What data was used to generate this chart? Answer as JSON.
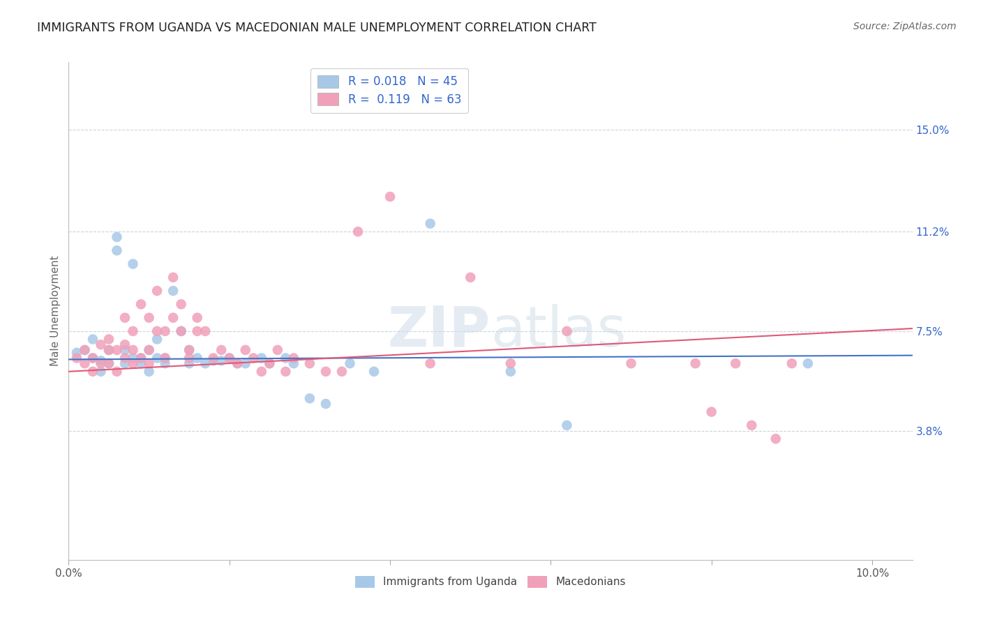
{
  "title": "IMMIGRANTS FROM UGANDA VS MACEDONIAN MALE UNEMPLOYMENT CORRELATION CHART",
  "source": "Source: ZipAtlas.com",
  "ylabel": "Male Unemployment",
  "xlim": [
    0.0,
    0.105
  ],
  "ylim": [
    -0.01,
    0.175
  ],
  "x_ticks": [
    0.0,
    0.02,
    0.04,
    0.06,
    0.08,
    0.1
  ],
  "x_tick_labels": [
    "0.0%",
    "",
    "",
    "",
    "",
    "10.0%"
  ],
  "y_tick_labels_right": [
    "3.8%",
    "7.5%",
    "11.2%",
    "15.0%"
  ],
  "y_ticks_right": [
    0.038,
    0.075,
    0.112,
    0.15
  ],
  "blue_color": "#a8c8e8",
  "pink_color": "#f0a0b8",
  "blue_line_color": "#4472C4",
  "pink_line_color": "#E05878",
  "background_color": "#ffffff",
  "grid_color": "#c8d4de",
  "blue_scatter_x": [
    0.001,
    0.002,
    0.003,
    0.003,
    0.004,
    0.004,
    0.005,
    0.005,
    0.006,
    0.006,
    0.007,
    0.007,
    0.008,
    0.008,
    0.009,
    0.009,
    0.01,
    0.01,
    0.011,
    0.011,
    0.012,
    0.012,
    0.013,
    0.014,
    0.015,
    0.015,
    0.016,
    0.017,
    0.018,
    0.019,
    0.02,
    0.021,
    0.022,
    0.024,
    0.025,
    0.027,
    0.028,
    0.03,
    0.032,
    0.035,
    0.038,
    0.045,
    0.055,
    0.062,
    0.092
  ],
  "blue_scatter_y": [
    0.067,
    0.068,
    0.065,
    0.072,
    0.064,
    0.06,
    0.063,
    0.068,
    0.11,
    0.105,
    0.063,
    0.068,
    0.065,
    0.1,
    0.063,
    0.065,
    0.068,
    0.06,
    0.072,
    0.065,
    0.065,
    0.063,
    0.09,
    0.075,
    0.068,
    0.063,
    0.065,
    0.063,
    0.064,
    0.064,
    0.065,
    0.063,
    0.063,
    0.065,
    0.063,
    0.065,
    0.063,
    0.05,
    0.048,
    0.063,
    0.06,
    0.115,
    0.06,
    0.04,
    0.063
  ],
  "pink_scatter_x": [
    0.001,
    0.002,
    0.002,
    0.003,
    0.003,
    0.004,
    0.004,
    0.005,
    0.005,
    0.005,
    0.006,
    0.006,
    0.007,
    0.007,
    0.007,
    0.008,
    0.008,
    0.008,
    0.009,
    0.009,
    0.01,
    0.01,
    0.01,
    0.011,
    0.011,
    0.012,
    0.012,
    0.013,
    0.013,
    0.014,
    0.014,
    0.015,
    0.015,
    0.016,
    0.016,
    0.017,
    0.018,
    0.019,
    0.02,
    0.021,
    0.022,
    0.023,
    0.024,
    0.025,
    0.026,
    0.027,
    0.028,
    0.03,
    0.032,
    0.034,
    0.036,
    0.04,
    0.045,
    0.05,
    0.055,
    0.062,
    0.07,
    0.078,
    0.08,
    0.083,
    0.085,
    0.088,
    0.09
  ],
  "pink_scatter_y": [
    0.065,
    0.068,
    0.063,
    0.065,
    0.06,
    0.07,
    0.063,
    0.068,
    0.063,
    0.072,
    0.06,
    0.068,
    0.065,
    0.07,
    0.08,
    0.063,
    0.068,
    0.075,
    0.065,
    0.085,
    0.063,
    0.068,
    0.08,
    0.09,
    0.075,
    0.065,
    0.075,
    0.08,
    0.095,
    0.085,
    0.075,
    0.068,
    0.065,
    0.08,
    0.075,
    0.075,
    0.065,
    0.068,
    0.065,
    0.063,
    0.068,
    0.065,
    0.06,
    0.063,
    0.068,
    0.06,
    0.065,
    0.063,
    0.06,
    0.06,
    0.112,
    0.125,
    0.063,
    0.095,
    0.063,
    0.075,
    0.063,
    0.063,
    0.045,
    0.063,
    0.04,
    0.035,
    0.063
  ],
  "blue_line_x": [
    0.0,
    0.105
  ],
  "blue_line_y": [
    0.0645,
    0.066
  ],
  "pink_line_x": [
    0.0,
    0.105
  ],
  "pink_line_y": [
    0.06,
    0.076
  ],
  "legend_text_1": "R = 0.018   N = 45",
  "legend_text_2": "R =  0.119   N = 63",
  "legend_labels_bottom": [
    "Immigrants from Uganda",
    "Macedonians"
  ]
}
